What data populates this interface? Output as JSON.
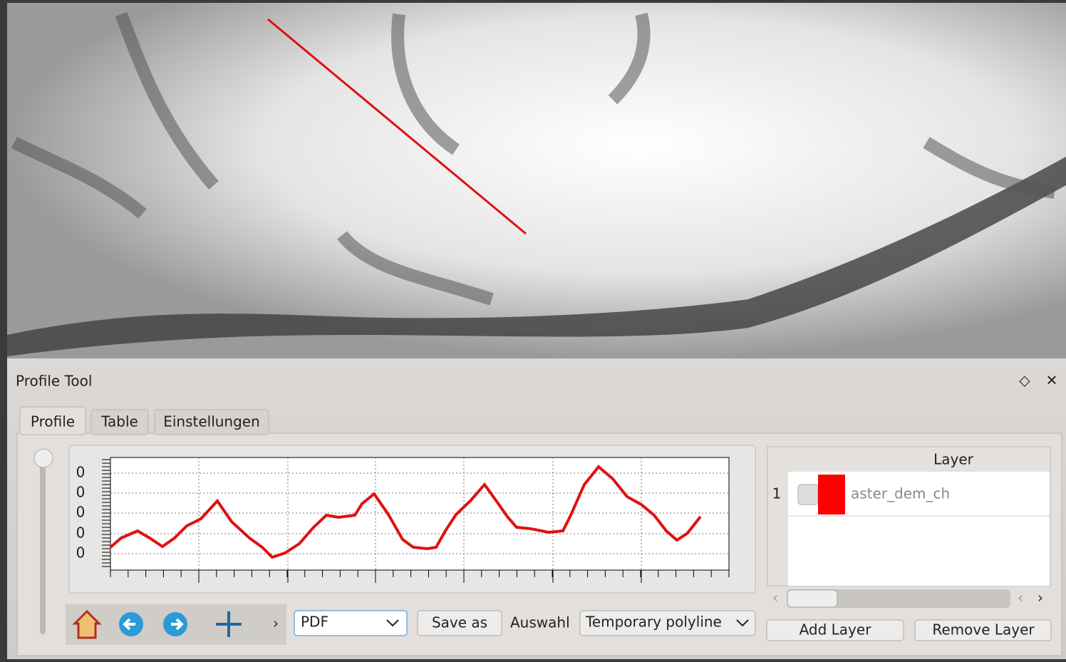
{
  "window": {
    "title": "Profile Tool"
  },
  "tabs": [
    "Profile",
    "Table",
    "Einstellungen"
  ],
  "plot": {
    "ytick_labels": [
      "0",
      "0",
      "0",
      "0",
      "0"
    ]
  },
  "toolbar": {
    "format": "PDF",
    "save_button": "Save as",
    "selection_label": "Auswahl",
    "selection_value": "Temporary polyline"
  },
  "layers": {
    "header": "Layer",
    "rows": [
      {
        "index": "1",
        "name": "aster_dem_ch"
      }
    ],
    "add_button": "Add Layer",
    "remove_button": "Remove Layer"
  }
}
